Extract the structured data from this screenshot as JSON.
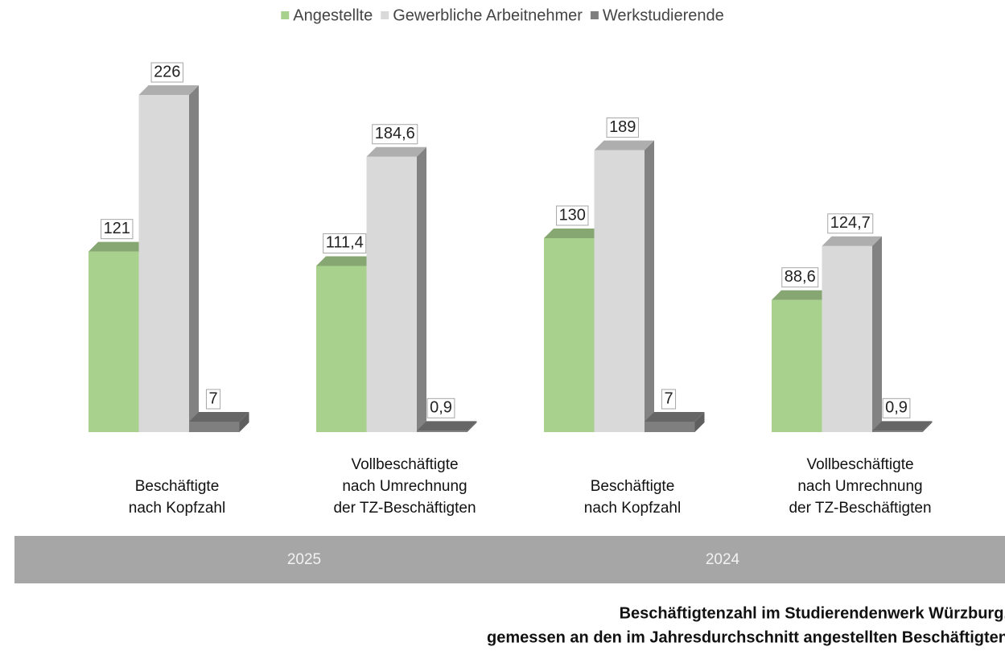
{
  "chart_data": {
    "type": "bar3d",
    "title": [
      "Beschäftigtenzahl im Studierendenwerk Würzburg,",
      "gemessen an den im Jahresdurchschnitt angestellten Beschäftigten"
    ],
    "categories": [
      [
        "Beschäftigte",
        "nach Kopfzahl"
      ],
      [
        "Vollbeschäftigte",
        "nach Umrechnung",
        "der TZ-Beschäftigten"
      ],
      [
        "Beschäftigte",
        "nach Kopfzahl"
      ],
      [
        "Vollbeschäftigte",
        "nach Umrechnung",
        "der TZ-Beschäftigten"
      ]
    ],
    "groups": [
      "2025",
      "2024"
    ],
    "series": [
      {
        "name": "Angestellte",
        "color": "#a9d18e",
        "values": [
          121,
          111.4,
          130,
          88.6
        ],
        "value_labels": [
          "121",
          "111,4",
          "130",
          "88,6"
        ]
      },
      {
        "name": "Gewerbliche Arbeitnehmer",
        "color": "#d9d9d9",
        "values": [
          226,
          184.6,
          189,
          124.7
        ],
        "value_labels": [
          "226",
          "184,6",
          "189",
          "124,7"
        ]
      },
      {
        "name": "Werkstudierende",
        "color": "#7f7f7f",
        "values": [
          7,
          0.9,
          7,
          0.9
        ],
        "value_labels": [
          "7",
          "0,9",
          "7",
          "0,9"
        ]
      }
    ]
  }
}
